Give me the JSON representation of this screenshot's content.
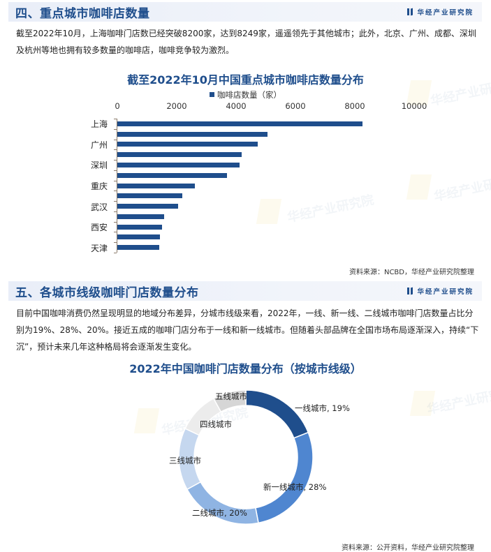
{
  "brand": {
    "name": "华经产业研究院"
  },
  "section4": {
    "title": "四、重点城市咖啡店数量",
    "paragraph": "截至2022年10月，上海咖啡门店数已经突破8200家，达到8249家，遥遥领先于其他城市；此外，北京、广州、成都、深圳及杭州等地也拥有较多数量的咖啡店，咖啡竞争较为激烈。",
    "source": "资料来源：NCBD，华经产业研究院整理"
  },
  "section5": {
    "title": "五、各城市线级咖啡门店数量分布",
    "paragraph": "目前中国咖啡消费仍然呈现明显的地域分布差异，分城市线级来看，2022年，一线、新一线、二线城市咖啡门店数量占比分别为19%、28%、20%。接近五成的咖啡门店分布于一线和新一线城市。但随着头部品牌在全国市场布局逐渐深入，持续“下沉”，预计未来几年这种格局将会逐渐发生变化。",
    "source": "资料来源：公开资料，华经产业研究院整理"
  },
  "chart_data": [
    {
      "type": "bar",
      "orientation": "horizontal",
      "title": "截至2022年10月中国重点城市咖啡店数量分布",
      "legend": [
        "咖啡店数量（家）"
      ],
      "legend_position": "top",
      "xlabel": "",
      "ylabel": "",
      "xlim": [
        0,
        10000
      ],
      "x_ticks": [
        "0",
        "2000",
        "4000",
        "6000",
        "8000",
        "10000"
      ],
      "x_axis_position": "top",
      "grid": false,
      "categories": [
        "上海",
        "",
        "广州",
        "",
        "深圳",
        "",
        "重庆",
        "",
        "武汉",
        "",
        "西安",
        "",
        "天津"
      ],
      "values": [
        8249,
        5050,
        4730,
        4190,
        4120,
        3690,
        2610,
        2190,
        2050,
        1580,
        1510,
        1440,
        1410
      ],
      "values_note": "Only 上海 = 8249 is confirmed (stated in the paragraph text). All other values are estimated from bar lengths against the axis and rounded; they are not printed on the chart.",
      "color": "#1f4e8c"
    },
    {
      "type": "pie",
      "variant": "donut",
      "title": "2022年中国咖啡门店数量分布（按城市线级）",
      "categories": [
        "一线城市",
        "新一线城市",
        "二线城市",
        "三线城市",
        "四线城市",
        "五线城市"
      ],
      "values": [
        19,
        28,
        20,
        15,
        10,
        8
      ],
      "values_note": "一线 19%, 新一线 28%, 二线 20% are printed on the chart. 三线/四线/五线 are not labeled with values; 15/10/8 are estimates from measured arc angles, rounded so the total is 100.",
      "data_labels": [
        "一线城市, 19%",
        "新一线城市, 28%",
        "二线城市, 20%",
        "三线城市",
        "四线城市",
        "五线城市"
      ],
      "colors": [
        "#1f4e8c",
        "#4f86d0",
        "#8fb4e3",
        "#c5d7ef",
        "#ececec",
        "#d6d6d6"
      ],
      "start_angle": "12 o'clock, clockwise"
    }
  ]
}
